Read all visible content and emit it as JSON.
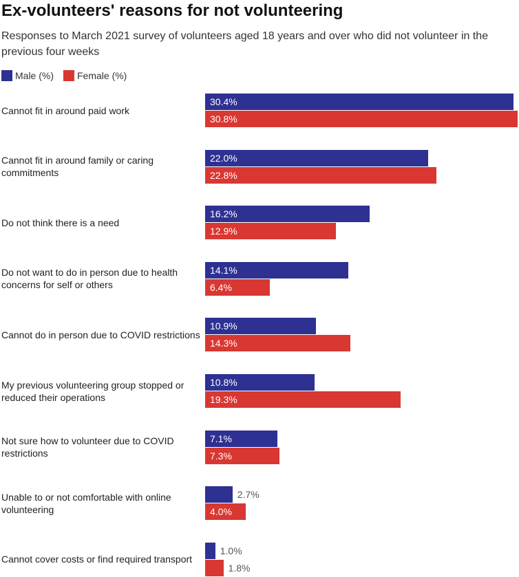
{
  "chart_data": {
    "type": "bar",
    "orientation": "horizontal",
    "title": "Ex-volunteers' reasons for not volunteering",
    "subtitle": "Responses to March 2021 survey of volunteers aged 18 years and over who did not volunteer in the previous four weeks",
    "categories": [
      "Cannot fit in around paid work",
      "Cannot fit in around family or caring commitments",
      "Do not think there is a need",
      "Do not want to do in person due to health concerns for self or others",
      "Cannot do in person due to COVID restrictions",
      "My previous volunteering group stopped or reduced their operations",
      "Not sure how to volunteer due to COVID restrictions",
      "Unable to or not comfortable with online volunteering",
      "Cannot cover costs or find required transport"
    ],
    "series": [
      {
        "name": "Male (%)",
        "color": "#2e3192",
        "values": [
          30.4,
          22.0,
          16.2,
          14.1,
          10.9,
          10.8,
          7.1,
          2.7,
          1.0
        ],
        "value_labels": [
          "30.4%",
          "22.0%",
          "16.2%",
          "14.1%",
          "10.9%",
          "10.8%",
          "7.1%",
          "2.7%",
          "1.0%"
        ]
      },
      {
        "name": "Female (%)",
        "color": "#d93731",
        "values": [
          30.8,
          22.8,
          12.9,
          6.4,
          14.3,
          19.3,
          7.3,
          4.0,
          1.8
        ],
        "value_labels": [
          "30.8%",
          "22.8%",
          "12.9%",
          "6.4%",
          "14.3%",
          "19.3%",
          "7.3%",
          "4.0%",
          "1.8%"
        ]
      }
    ]
  }
}
